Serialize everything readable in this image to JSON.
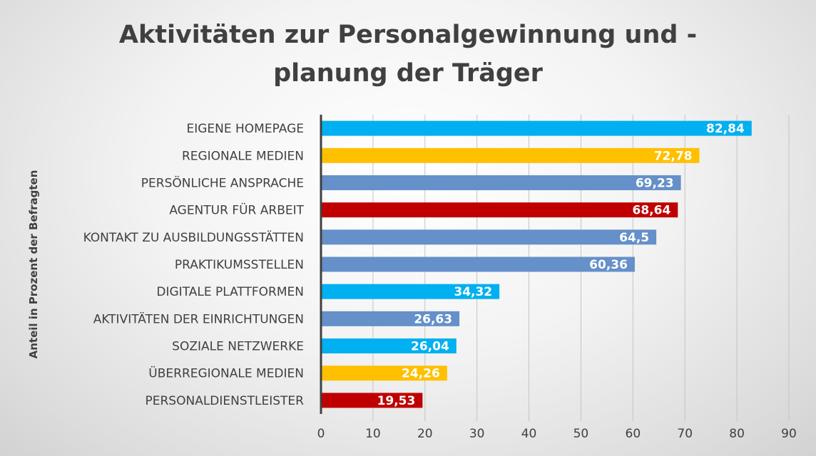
{
  "chart_data": {
    "type": "bar",
    "orientation": "horizontal",
    "title": "Aktivitäten zur Personalgewinnung und - planung der Träger",
    "title_lines": [
      "Aktivitäten zur Personalgewinnung und -",
      "planung der Träger"
    ],
    "ylabel": "Anteil in Prozent der Befragten",
    "xlabel": "",
    "xlim": [
      0,
      90
    ],
    "xticks": [
      0,
      10,
      20,
      30,
      40,
      50,
      60,
      70,
      80,
      90
    ],
    "grid": "vertical",
    "legend": "none",
    "bars": [
      {
        "category": "EIGENE HOMEPAGE",
        "value": 82.84,
        "label": "82,84",
        "color": "#00b0f0",
        "label_color": "#ffffff"
      },
      {
        "category": "REGIONALE MEDIEN",
        "value": 72.78,
        "label": "72,78",
        "color": "#ffc000",
        "label_color": "#ffffff"
      },
      {
        "category": "PERSÖNLICHE ANSPRACHE",
        "value": 69.23,
        "label": "69,23",
        "color": "#6590c9",
        "label_color": "#ffffff"
      },
      {
        "category": "AGENTUR FÜR ARBEIT",
        "value": 68.64,
        "label": "68,64",
        "color": "#c00000",
        "label_color": "#ffffff"
      },
      {
        "category": "KONTAKT ZU AUSBILDUNGSSTÄTTEN",
        "value": 64.5,
        "label": "64,5",
        "color": "#6590c9",
        "label_color": "#ffffff"
      },
      {
        "category": "PRAKTIKUMSSTELLEN",
        "value": 60.36,
        "label": "60,36",
        "color": "#6590c9",
        "label_color": "#ffffff"
      },
      {
        "category": "DIGITALE PLATTFORMEN",
        "value": 34.32,
        "label": "34,32",
        "color": "#00b0f0",
        "label_color": "#ffffff"
      },
      {
        "category": "AKTIVITÄTEN DER EINRICHTUNGEN",
        "value": 26.63,
        "label": "26,63",
        "color": "#6590c9",
        "label_color": "#ffffff"
      },
      {
        "category": "SOZIALE NETZWERKE",
        "value": 26.04,
        "label": "26,04",
        "color": "#00b0f0",
        "label_color": "#ffffff"
      },
      {
        "category": "ÜBERREGIONALE MEDIEN",
        "value": 24.26,
        "label": "24,26",
        "color": "#ffc000",
        "label_color": "#ffffff"
      },
      {
        "category": "PERSONALDIENSTLEISTER",
        "value": 19.53,
        "label": "19,53",
        "color": "#c00000",
        "label_color": "#ffffff"
      }
    ]
  }
}
